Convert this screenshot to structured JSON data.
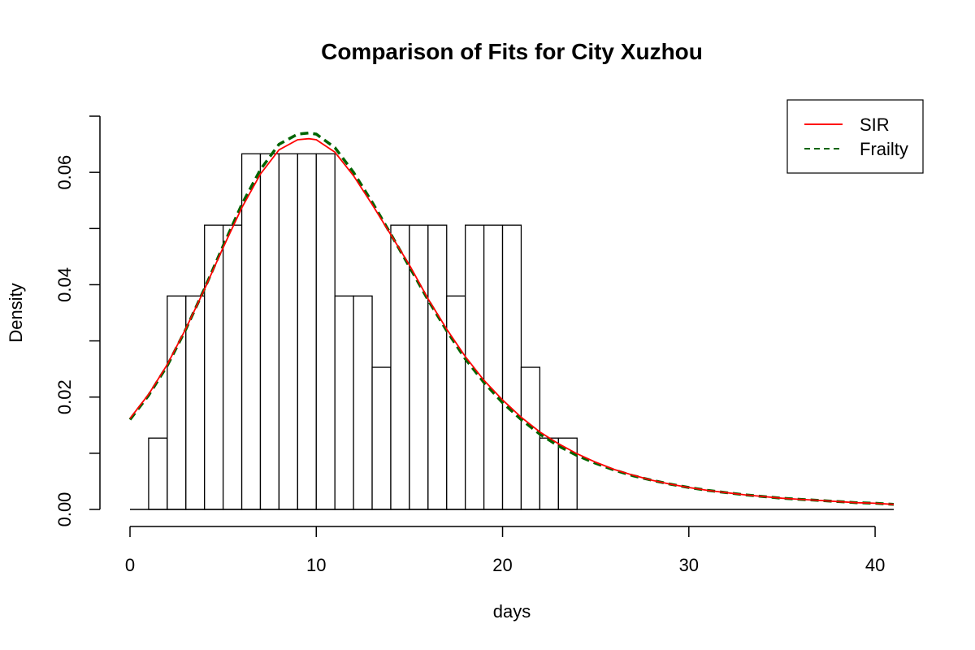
{
  "chart_data": {
    "type": "bar",
    "title": "Comparison of Fits for City Xuzhou",
    "xlabel": "days",
    "ylabel": "Density",
    "xlim": [
      0,
      41
    ],
    "ylim": [
      0,
      0.07
    ],
    "xticks": [
      0,
      10,
      20,
      30,
      40
    ],
    "yticks": [
      0,
      0.01,
      0.02,
      0.03,
      0.04,
      0.05,
      0.06,
      0.07
    ],
    "ytick_labels": [
      {
        "value": 0,
        "label": "0.00"
      },
      {
        "value": 0.02,
        "label": "0.02"
      },
      {
        "value": 0.04,
        "label": "0.04"
      },
      {
        "value": 0.06,
        "label": "0.06"
      }
    ],
    "grid": false,
    "legend_position": "top-right",
    "histogram": {
      "bin_edges": [
        1,
        2,
        3,
        4,
        5,
        6,
        7,
        8,
        9,
        10,
        11,
        12,
        13,
        14,
        15,
        16,
        17,
        18,
        19,
        20,
        21,
        22,
        23,
        24
      ],
      "densities": [
        0.0127,
        0.038,
        0.038,
        0.0506,
        0.0506,
        0.0633,
        0.0633,
        0.0633,
        0.0633,
        0.0633,
        0.038,
        0.038,
        0.0253,
        0.0506,
        0.0506,
        0.0506,
        0.038,
        0.0506,
        0.0506,
        0.0506,
        0.0253,
        0.0127,
        0.0127
      ],
      "fill": "#ffffff",
      "stroke": "#000000"
    },
    "series": [
      {
        "name": "SIR",
        "style": "solid",
        "color": "#ff0000",
        "x": [
          0,
          1,
          2,
          3,
          4,
          5,
          6,
          7,
          8,
          9,
          9.6,
          10,
          11,
          12,
          13,
          14,
          15,
          16,
          17,
          18,
          19,
          20,
          21,
          22,
          23,
          24,
          25,
          26,
          27,
          28,
          29,
          30,
          31,
          32,
          33,
          34,
          35,
          36,
          37,
          38,
          39,
          40,
          41
        ],
        "y": [
          0.0162,
          0.0205,
          0.0258,
          0.0322,
          0.0392,
          0.0466,
          0.0537,
          0.0597,
          0.064,
          0.0658,
          0.066,
          0.0658,
          0.0636,
          0.0594,
          0.0543,
          0.0489,
          0.0435,
          0.0375,
          0.0321,
          0.0272,
          0.023,
          0.0195,
          0.0164,
          0.0138,
          0.0117,
          0.0099,
          0.0084,
          0.0071,
          0.0061,
          0.0052,
          0.0045,
          0.0039,
          0.0034,
          0.003,
          0.0026,
          0.0023,
          0.002,
          0.0018,
          0.0016,
          0.0014,
          0.0012,
          0.0011,
          0.0009
        ]
      },
      {
        "name": "Frailty",
        "style": "dashed",
        "color": "#006400",
        "x": [
          0,
          1,
          2,
          3,
          4,
          5,
          6,
          7,
          8,
          9,
          9.6,
          10,
          11,
          12,
          13,
          14,
          15,
          16,
          17,
          18,
          19,
          20,
          21,
          22,
          23,
          24,
          25,
          26,
          27,
          28,
          29,
          30,
          31,
          32,
          33,
          34,
          35,
          36,
          37,
          38,
          39,
          40,
          41
        ],
        "y": [
          0.016,
          0.0203,
          0.0256,
          0.0321,
          0.0393,
          0.0469,
          0.0543,
          0.0605,
          0.065,
          0.0668,
          0.067,
          0.0668,
          0.0644,
          0.06,
          0.0547,
          0.049,
          0.0432,
          0.0373,
          0.0318,
          0.0268,
          0.0226,
          0.019,
          0.016,
          0.0134,
          0.0113,
          0.0096,
          0.0082,
          0.007,
          0.006,
          0.0052,
          0.0045,
          0.0039,
          0.0034,
          0.003,
          0.0026,
          0.0023,
          0.002,
          0.0018,
          0.0016,
          0.0014,
          0.0012,
          0.0011,
          0.0009
        ]
      }
    ]
  }
}
